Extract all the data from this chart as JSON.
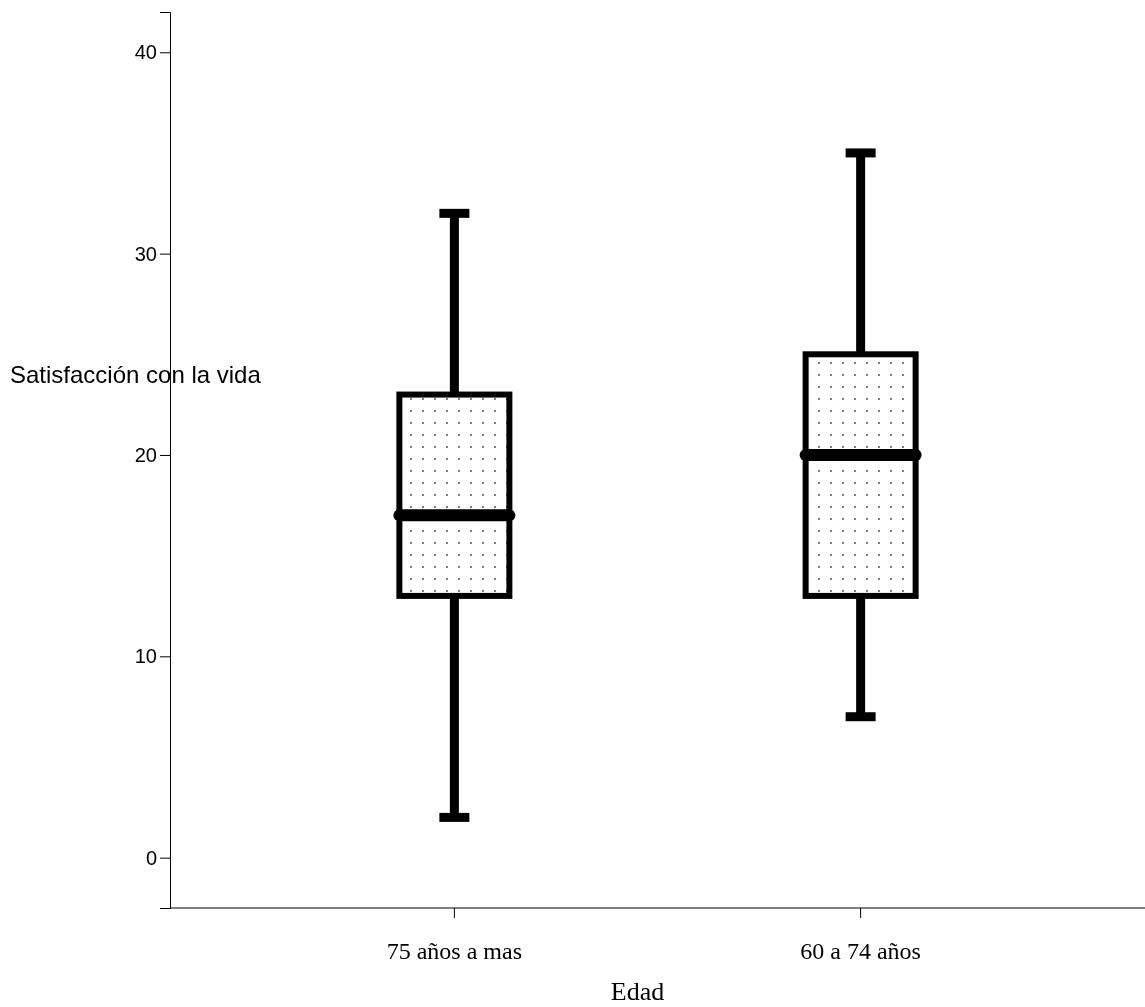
{
  "chart_data": {
    "type": "box",
    "xlabel": "Edad",
    "ylabel": "Satisfacción con la vida",
    "categories": [
      "75 años a mas",
      "60 a 74 años"
    ],
    "boxes": [
      {
        "low": 2,
        "q1": 13,
        "median": 17,
        "q3": 23,
        "high": 32
      },
      {
        "low": 7,
        "q1": 13,
        "median": 20,
        "q3": 25,
        "high": 35
      }
    ],
    "ylim": [
      -2.5,
      42
    ],
    "yticks": [
      0,
      10,
      20,
      30,
      40
    ]
  }
}
